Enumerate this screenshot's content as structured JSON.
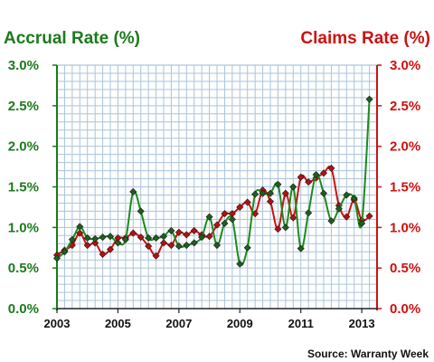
{
  "chart_data": {
    "type": "line",
    "title_left": "Accrual Rate (%)",
    "title_right": "Claims Rate (%)",
    "source": "Source: Warranty Week",
    "x_range": [
      2003.0,
      2013.5
    ],
    "y_range": [
      0,
      3.0
    ],
    "x_ticks": [
      {
        "value": 2003,
        "label": "2003"
      },
      {
        "value": 2005,
        "label": "2005"
      },
      {
        "value": 2007,
        "label": "2007"
      },
      {
        "value": 2009,
        "label": "2009"
      },
      {
        "value": 2011,
        "label": "2011"
      },
      {
        "value": 2013,
        "label": "2013"
      }
    ],
    "y_ticks_left": [
      "0.0%",
      "0.5%",
      "1.0%",
      "1.5%",
      "2.0%",
      "2.5%",
      "3.0%"
    ],
    "y_ticks_right": [
      "0.0%",
      "0.5%",
      "1.0%",
      "1.5%",
      "2.0%",
      "2.5%",
      "3.0%"
    ],
    "grid": true,
    "colors": {
      "accrual_line": "#1c8a1c",
      "accrual_marker": "#1f5e1f",
      "claims_line": "#cc1111",
      "claims_marker": "#b80f0f",
      "grid": "#a9c3dc",
      "left_axis": "#1c7a1c",
      "right_axis": "#cc1111"
    },
    "series": [
      {
        "key": "accrual",
        "x": [
          2003.0,
          2003.25,
          2003.5,
          2003.75,
          2004.0,
          2004.25,
          2004.5,
          2004.75,
          2005.0,
          2005.25,
          2005.5,
          2005.75,
          2006.0,
          2006.25,
          2006.5,
          2006.75,
          2007.0,
          2007.25,
          2007.5,
          2007.75,
          2008.0,
          2008.25,
          2008.5,
          2008.75,
          2009.0,
          2009.25,
          2009.5,
          2009.75,
          2010.0,
          2010.25,
          2010.5,
          2010.75,
          2011.0,
          2011.25,
          2011.5,
          2011.75,
          2012.0,
          2012.25,
          2012.5,
          2012.75,
          2013.0,
          2013.25
        ],
        "values": [
          0.62,
          0.7,
          0.85,
          1.01,
          0.87,
          0.86,
          0.88,
          0.89,
          0.81,
          0.85,
          1.44,
          1.2,
          0.87,
          0.87,
          0.89,
          0.96,
          0.77,
          0.78,
          0.81,
          0.88,
          1.13,
          0.78,
          1.05,
          1.1,
          0.55,
          0.75,
          1.41,
          1.42,
          1.42,
          1.53,
          1.0,
          1.5,
          0.74,
          1.18,
          1.65,
          1.42,
          1.08,
          1.23,
          1.4,
          1.36,
          1.05,
          2.58
        ]
      },
      {
        "key": "claims",
        "x": [
          2003.0,
          2003.25,
          2003.5,
          2003.75,
          2004.0,
          2004.25,
          2004.5,
          2004.75,
          2005.0,
          2005.25,
          2005.5,
          2005.75,
          2006.0,
          2006.25,
          2006.5,
          2006.75,
          2007.0,
          2007.25,
          2007.5,
          2007.75,
          2008.0,
          2008.25,
          2008.5,
          2008.75,
          2009.0,
          2009.25,
          2009.5,
          2009.75,
          2010.0,
          2010.25,
          2010.5,
          2010.75,
          2011.0,
          2011.25,
          2011.5,
          2011.75,
          2012.0,
          2012.25,
          2012.5,
          2012.75,
          2013.0,
          2013.25
        ],
        "values": [
          0.66,
          0.72,
          0.78,
          0.93,
          0.78,
          0.81,
          0.67,
          0.73,
          0.87,
          0.87,
          0.93,
          0.88,
          0.77,
          0.65,
          0.81,
          0.78,
          0.94,
          0.91,
          0.96,
          0.91,
          0.89,
          1.03,
          1.17,
          1.17,
          1.25,
          1.31,
          1.17,
          1.46,
          1.32,
          0.98,
          1.42,
          1.12,
          1.62,
          1.56,
          1.61,
          1.67,
          1.73,
          1.27,
          1.13,
          1.34,
          1.09,
          1.14
        ]
      }
    ]
  }
}
